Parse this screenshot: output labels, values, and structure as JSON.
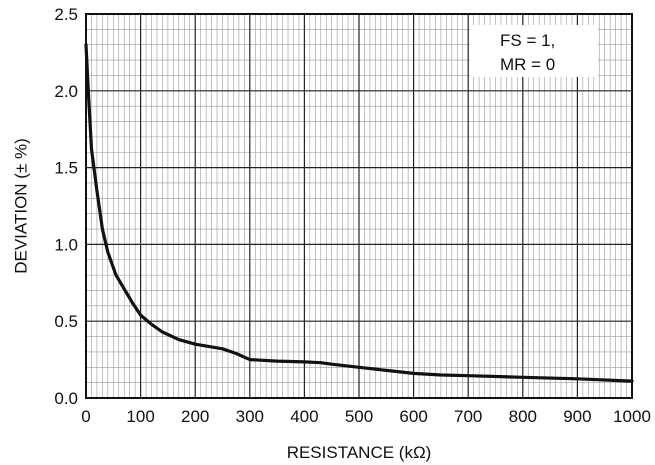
{
  "chart_data": {
    "type": "line",
    "xlabel": "RESISTANCE (kΩ)",
    "ylabel": "DEVIATION (± %)",
    "xlim": [
      0,
      1000
    ],
    "ylim": [
      0,
      2.5
    ],
    "x_ticks": [
      "0",
      "100",
      "200",
      "300",
      "400",
      "500",
      "600",
      "700",
      "800",
      "900",
      "1000"
    ],
    "y_ticks": [
      "0.0",
      "0.5",
      "1.0",
      "1.5",
      "2.0",
      "2.5"
    ],
    "grid": "on",
    "annotation": [
      "FS = 1,",
      "MR = 0"
    ],
    "series": [
      {
        "x": [
          0,
          5,
          10,
          20,
          30,
          40,
          55,
          70,
          85,
          100,
          120,
          140,
          170,
          200,
          250,
          275,
          300,
          350,
          400,
          430,
          450,
          500,
          550,
          600,
          650,
          700,
          800,
          900,
          1000
        ],
        "y": [
          2.3,
          1.95,
          1.62,
          1.35,
          1.1,
          0.95,
          0.8,
          0.71,
          0.62,
          0.54,
          0.48,
          0.43,
          0.38,
          0.35,
          0.32,
          0.29,
          0.25,
          0.24,
          0.235,
          0.23,
          0.22,
          0.2,
          0.18,
          0.16,
          0.15,
          0.145,
          0.135,
          0.125,
          0.11
        ],
        "color": "#111111"
      }
    ]
  }
}
